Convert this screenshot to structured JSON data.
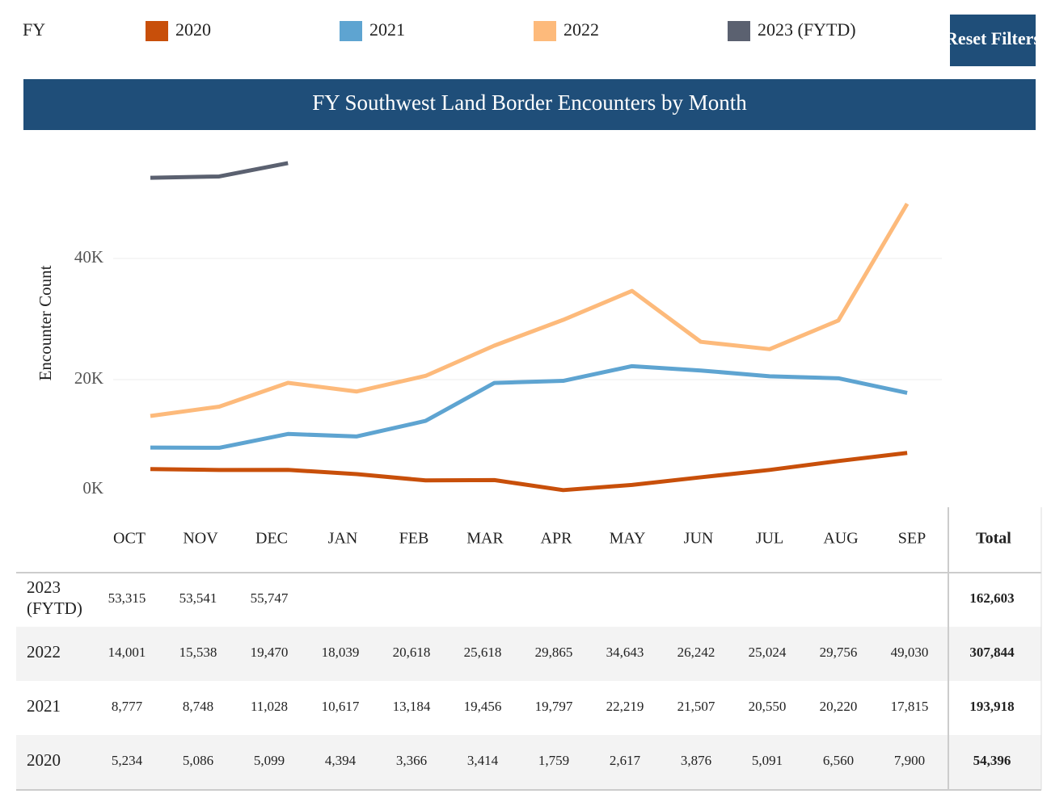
{
  "legend_title": "FY",
  "reset_button": "Reset Filters",
  "total_header": "Total",
  "chart_data": {
    "type": "line",
    "title": "FY Southwest Land Border Encounters by Month",
    "y_label": "Encounter Count",
    "categories": [
      "OCT",
      "NOV",
      "DEC",
      "JAN",
      "FEB",
      "MAR",
      "APR",
      "MAY",
      "JUN",
      "JUL",
      "AUG",
      "SEP"
    ],
    "ylim": [
      0,
      58000
    ],
    "yticks": [
      {
        "value": 0,
        "label": "0K"
      },
      {
        "value": 20000,
        "label": "20K"
      },
      {
        "value": 40000,
        "label": "40K"
      }
    ],
    "grid": true,
    "series": [
      {
        "name": "2020",
        "color": "#c84f0a",
        "values": [
          5234,
          5086,
          5099,
          4394,
          3366,
          3414,
          1759,
          2617,
          3876,
          5091,
          6560,
          7900
        ],
        "value_labels": [
          "5,234",
          "5,086",
          "5,099",
          "4,394",
          "3,366",
          "3,414",
          "1,759",
          "2,617",
          "3,876",
          "5,091",
          "6,560",
          "7,900"
        ],
        "total": 54396,
        "total_label": "54,396"
      },
      {
        "name": "2021",
        "color": "#5ea4d1",
        "values": [
          8777,
          8748,
          11028,
          10617,
          13184,
          19456,
          19797,
          22219,
          21507,
          20550,
          20220,
          17815
        ],
        "value_labels": [
          "8,777",
          "8,748",
          "11,028",
          "10,617",
          "13,184",
          "19,456",
          "19,797",
          "22,219",
          "21,507",
          "20,550",
          "20,220",
          "17,815"
        ],
        "total": 193918,
        "total_label": "193,918"
      },
      {
        "name": "2022",
        "color": "#fdba7b",
        "values": [
          14001,
          15538,
          19470,
          18039,
          20618,
          25618,
          29865,
          34643,
          26242,
          25024,
          29756,
          49030
        ],
        "value_labels": [
          "14,001",
          "15,538",
          "19,470",
          "18,039",
          "20,618",
          "25,618",
          "29,865",
          "34,643",
          "26,242",
          "25,024",
          "29,756",
          "49,030"
        ],
        "total": 307844,
        "total_label": "307,844"
      },
      {
        "name": "2023 (FYTD)",
        "color": "#5b6170",
        "values": [
          53315,
          53541,
          55747,
          null,
          null,
          null,
          null,
          null,
          null,
          null,
          null,
          null
        ],
        "value_labels": [
          "53,315",
          "53,541",
          "55,747",
          null,
          null,
          null,
          null,
          null,
          null,
          null,
          null,
          null
        ],
        "total": 162603,
        "total_label": "162,603"
      }
    ]
  }
}
